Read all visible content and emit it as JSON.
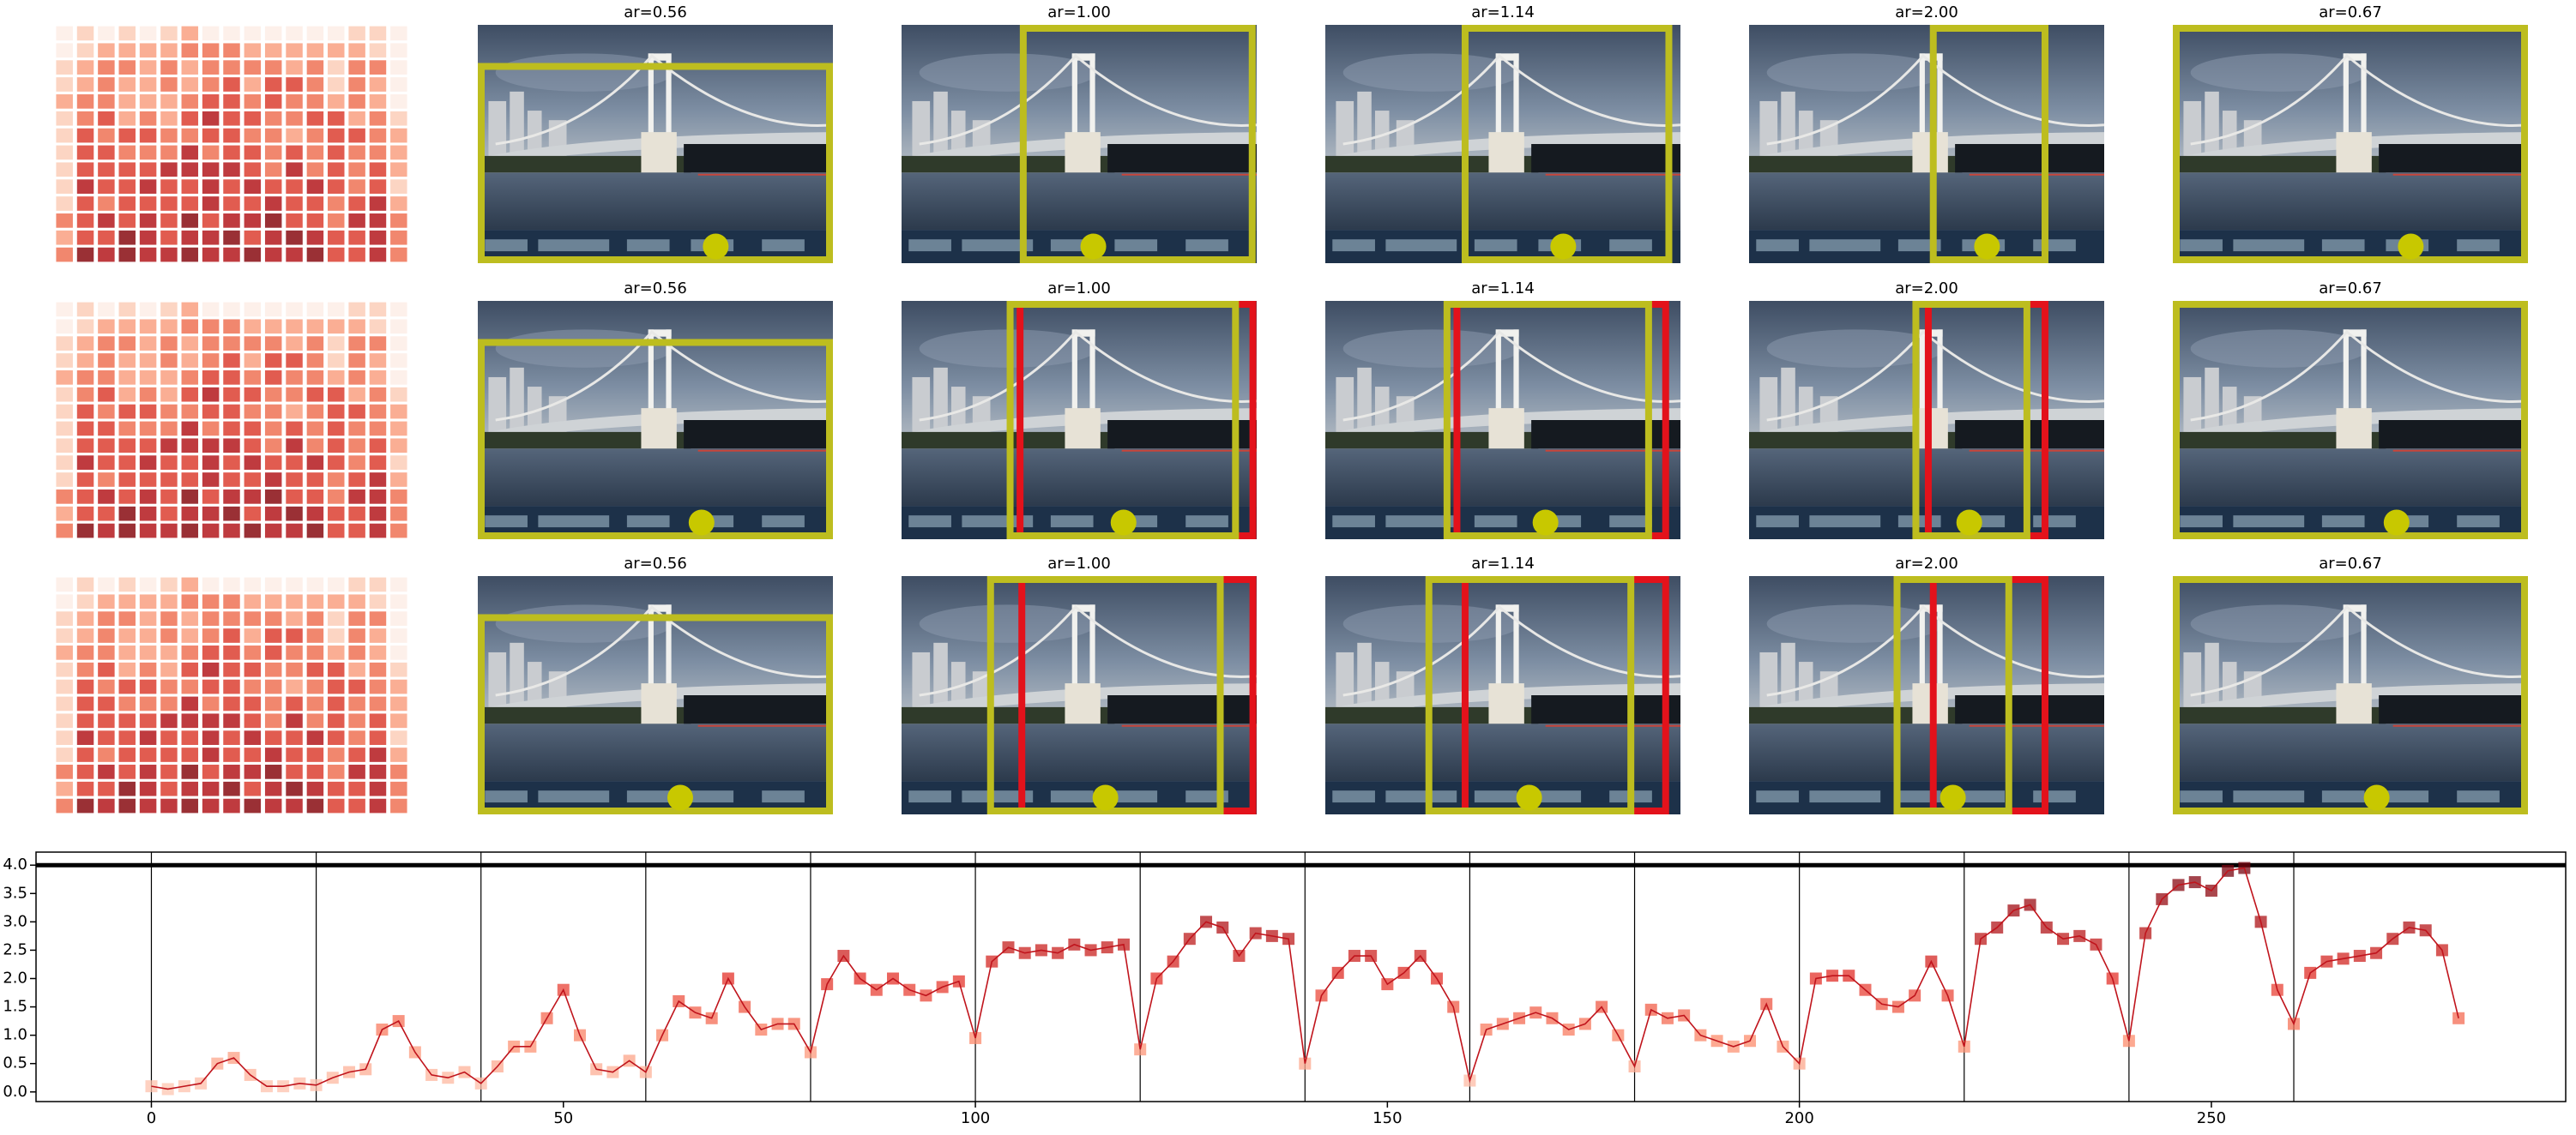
{
  "grid": {
    "rows": [
      {
        "titles": [
          "ar=0.56",
          "ar=1.00",
          "ar=1.14",
          "ar=2.00",
          "ar=0.67"
        ]
      },
      {
        "titles": [
          "ar=0.56",
          "ar=1.00",
          "ar=1.14",
          "ar=2.00",
          "ar=0.67"
        ]
      },
      {
        "titles": [
          "ar=0.56",
          "ar=1.00",
          "ar=1.14",
          "ar=2.00",
          "ar=0.67"
        ]
      }
    ]
  },
  "chart_data": {
    "type": "line",
    "x": [
      0,
      2,
      4,
      6,
      8,
      10,
      12,
      14,
      16,
      18,
      20,
      22,
      24,
      26,
      28,
      30,
      32,
      34,
      36,
      38,
      40,
      42,
      44,
      46,
      48,
      50,
      52,
      54,
      56,
      58,
      60,
      62,
      64,
      66,
      68,
      70,
      72,
      74,
      76,
      78,
      80,
      82,
      84,
      86,
      88,
      90,
      92,
      94,
      96,
      98,
      100,
      102,
      104,
      106,
      108,
      110,
      112,
      114,
      116,
      118,
      120,
      122,
      124,
      126,
      128,
      130,
      132,
      134,
      136,
      138,
      140,
      142,
      144,
      146,
      148,
      150,
      152,
      154,
      156,
      158,
      160,
      162,
      164,
      166,
      168,
      170,
      172,
      174,
      176,
      178,
      180,
      182,
      184,
      186,
      188,
      190,
      192,
      194,
      196,
      198,
      200,
      202,
      204,
      206,
      208,
      210,
      212,
      214,
      216,
      218,
      220,
      222,
      224,
      226,
      228,
      230,
      232,
      234,
      236,
      238,
      240,
      242,
      244,
      246,
      248,
      250,
      252,
      254,
      256,
      258,
      260,
      262,
      264,
      266,
      268,
      270,
      272,
      274,
      276,
      278,
      280
    ],
    "values": [
      0.1,
      0.05,
      0.1,
      0.15,
      0.5,
      0.6,
      0.3,
      0.1,
      0.1,
      0.15,
      0.12,
      0.25,
      0.35,
      0.4,
      1.1,
      1.25,
      0.7,
      0.3,
      0.25,
      0.35,
      0.15,
      0.45,
      0.8,
      0.8,
      1.3,
      1.8,
      1.0,
      0.4,
      0.35,
      0.55,
      0.35,
      1.0,
      1.6,
      1.4,
      1.3,
      2.0,
      1.5,
      1.1,
      1.2,
      1.2,
      0.7,
      1.9,
      2.4,
      2.0,
      1.8,
      2.0,
      1.8,
      1.7,
      1.85,
      1.95,
      0.95,
      2.3,
      2.55,
      2.45,
      2.5,
      2.45,
      2.6,
      2.5,
      2.55,
      2.6,
      0.75,
      2.0,
      2.3,
      2.7,
      3.0,
      2.9,
      2.4,
      2.8,
      2.75,
      2.7,
      0.5,
      1.7,
      2.1,
      2.4,
      2.4,
      1.9,
      2.1,
      2.4,
      2.0,
      1.5,
      0.2,
      1.1,
      1.2,
      1.3,
      1.4,
      1.3,
      1.1,
      1.2,
      1.5,
      1.0,
      0.45,
      1.45,
      1.3,
      1.35,
      1.0,
      0.9,
      0.8,
      0.9,
      1.55,
      0.8,
      0.5,
      2.0,
      2.05,
      2.05,
      1.8,
      1.55,
      1.5,
      1.7,
      2.3,
      1.7,
      0.8,
      2.7,
      2.9,
      3.2,
      3.3,
      2.9,
      2.7,
      2.75,
      2.6,
      2.0,
      0.9,
      2.8,
      3.4,
      3.65,
      3.7,
      3.55,
      3.9,
      3.95,
      3.0,
      1.8,
      1.2,
      2.1,
      2.3,
      2.35,
      2.4,
      2.45,
      2.7,
      2.9,
      2.85,
      2.5,
      1.3
    ],
    "line_color": "#c0141c",
    "marker_colors": [
      "#fdd4c2",
      "#fc8a6a",
      "#e32f27",
      "#a50f15",
      "#67000d"
    ],
    "xlim": [
      -14,
      293
    ],
    "ylim": [
      -0.17,
      4.23
    ],
    "xticks": [
      0,
      50,
      100,
      150,
      200,
      250
    ],
    "yticks": [
      {
        "value": 0,
        "label": "0.0"
      },
      0.5,
      {
        "value": 1,
        "label": "1.0"
      },
      1.5,
      {
        "value": 2,
        "label": "2.0"
      },
      2.5,
      {
        "value": 3,
        "label": "3.0"
      },
      3.5,
      {
        "value": 4,
        "label": "4.0"
      }
    ],
    "vlines": [
      0,
      20,
      40,
      60,
      80,
      100,
      120,
      140,
      160,
      180,
      200,
      220,
      240,
      260
    ],
    "hlines": [
      4
    ]
  }
}
